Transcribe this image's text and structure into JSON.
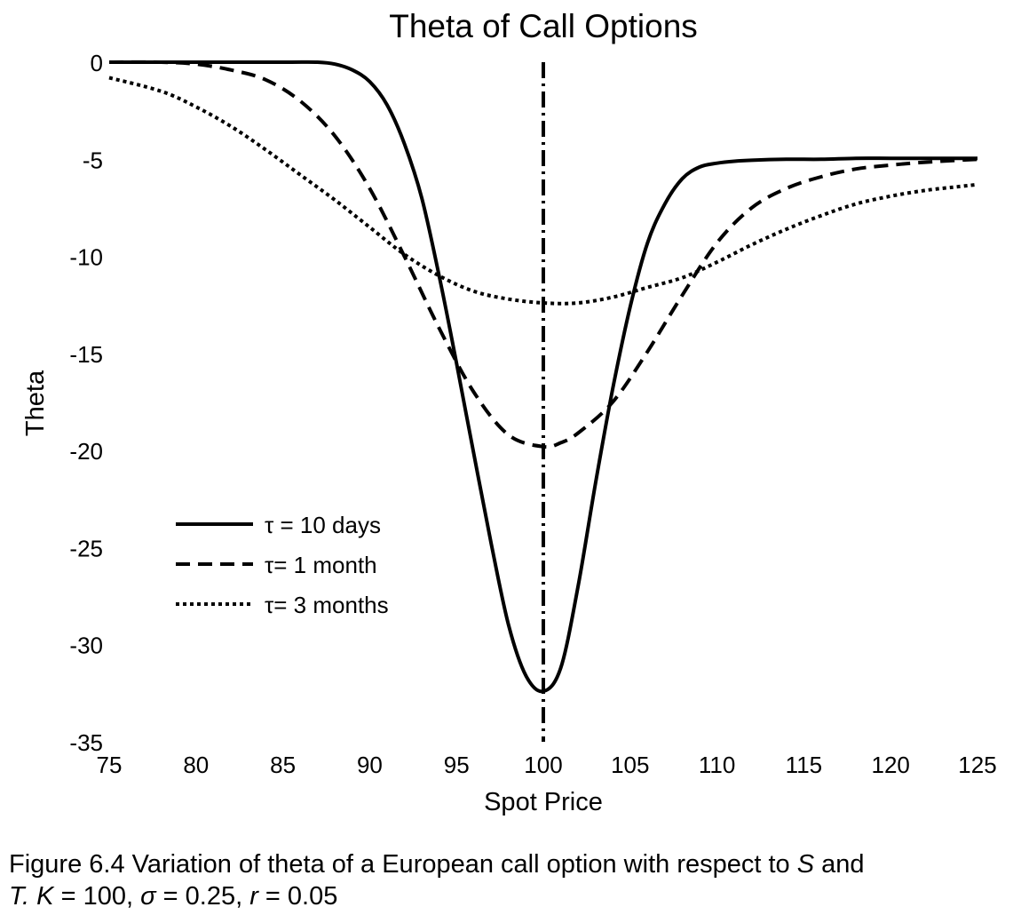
{
  "chart_data": {
    "type": "line",
    "title": "Theta of Call Options",
    "xlabel": "Spot Price",
    "ylabel": "Theta",
    "xlim": [
      75,
      125
    ],
    "ylim": [
      -35,
      0
    ],
    "xticks": [
      "75",
      "80",
      "85",
      "90",
      "95",
      "100",
      "105",
      "110",
      "115",
      "120",
      "125"
    ],
    "yticks": [
      "0",
      "-5",
      "-10",
      "-15",
      "-20",
      "-25",
      "-30",
      "-35"
    ],
    "grid": false,
    "legend_position": "lower-left",
    "strike_marker": {
      "x": 100,
      "style": "dash-dot"
    },
    "series": [
      {
        "name": "τ = 10 days",
        "style": "solid",
        "x": [
          75,
          80,
          85,
          87,
          88,
          89,
          90,
          91,
          92,
          93,
          94,
          95,
          96,
          97,
          98,
          99,
          100,
          101,
          102,
          103,
          104,
          105,
          106,
          107,
          108,
          109,
          110,
          111,
          112,
          114,
          116,
          118,
          120,
          122,
          125
        ],
        "y": [
          0,
          0,
          0,
          0,
          -0.1,
          -0.4,
          -1.0,
          -2.2,
          -4.2,
          -7.0,
          -11.0,
          -15.5,
          -20.2,
          -24.8,
          -29.0,
          -31.6,
          -32.4,
          -31.2,
          -27.0,
          -21.7,
          -16.8,
          -12.6,
          -9.3,
          -7.3,
          -6.0,
          -5.4,
          -5.2,
          -5.1,
          -5.05,
          -5.0,
          -5.0,
          -4.95,
          -4.95,
          -4.95,
          -4.95
        ]
      },
      {
        "name": "τ= 1 month",
        "style": "dashed",
        "x": [
          75,
          78,
          80,
          82,
          84,
          86,
          88,
          90,
          92,
          94,
          96,
          98,
          100,
          101,
          102,
          104,
          106,
          108,
          110,
          112,
          114,
          116,
          118,
          120,
          122,
          125
        ],
        "y": [
          0,
          0,
          -0.1,
          -0.4,
          -0.9,
          -2.0,
          -3.8,
          -6.5,
          -10.0,
          -13.7,
          -17.0,
          -19.2,
          -19.8,
          -19.6,
          -19.1,
          -17.5,
          -14.9,
          -12.0,
          -9.3,
          -7.5,
          -6.5,
          -5.9,
          -5.5,
          -5.3,
          -5.15,
          -5.0
        ]
      },
      {
        "name": "τ= 3 months",
        "style": "dotted",
        "x": [
          75,
          78,
          80,
          82,
          84,
          86,
          88,
          90,
          92,
          94,
          96,
          98,
          100,
          102,
          104,
          106,
          108,
          110,
          112,
          114,
          116,
          118,
          120,
          122,
          124,
          125
        ],
        "y": [
          -0.8,
          -1.5,
          -2.3,
          -3.3,
          -4.5,
          -5.8,
          -7.1,
          -8.5,
          -9.9,
          -11.0,
          -11.8,
          -12.2,
          -12.4,
          -12.4,
          -12.1,
          -11.6,
          -11.1,
          -10.3,
          -9.4,
          -8.6,
          -7.9,
          -7.3,
          -6.9,
          -6.6,
          -6.4,
          -6.3
        ]
      }
    ]
  },
  "caption": {
    "prefix": "Figure 6.4 Variation of theta of a European call option with respect to ",
    "var_s": "S",
    "and": " and",
    "var_t": "T.",
    "var_k": " K",
    "k_val": " = 100, ",
    "sigma": "σ",
    "sigma_val": " = 0.25, ",
    "var_r": "r",
    "r_val": " = 0.05"
  }
}
